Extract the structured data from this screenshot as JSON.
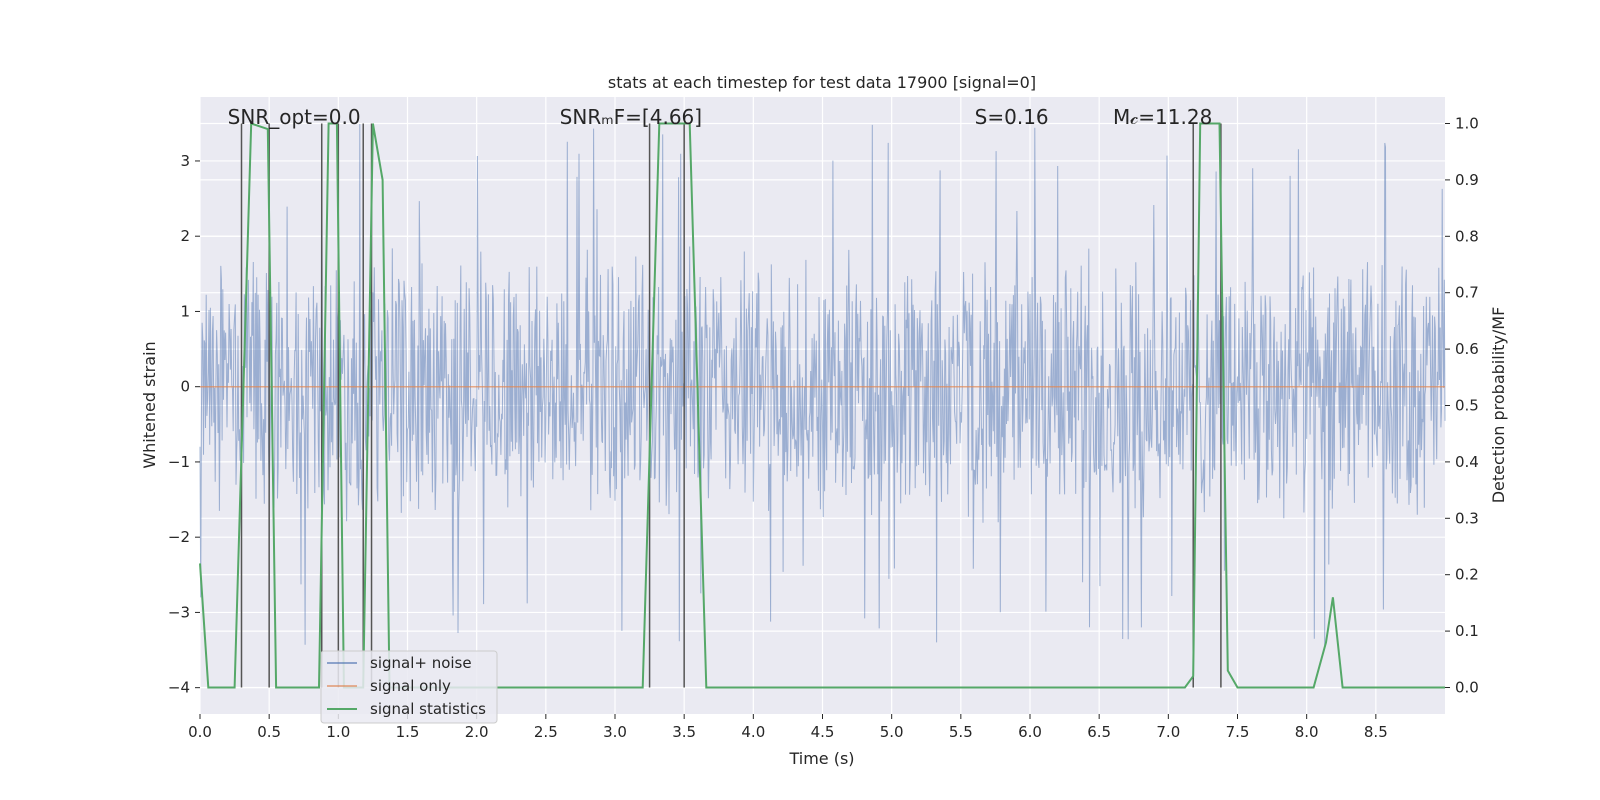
{
  "chart_data": {
    "type": "line",
    "title": "stats at each timestep for test data 17900 [signal=0]",
    "xlabel": "Time (s)",
    "ylabel": "Whitened strain",
    "y2label": "Detection probability/MF",
    "xlim": [
      0,
      9.0
    ],
    "ylim": [
      -4.35,
      3.85
    ],
    "y2lim": [
      -0.047,
      1.047
    ],
    "x_ticks": [
      0.0,
      0.5,
      1.0,
      1.5,
      2.0,
      2.5,
      3.0,
      3.5,
      4.0,
      4.5,
      5.0,
      5.5,
      6.0,
      6.5,
      7.0,
      7.5,
      8.0,
      8.5
    ],
    "x_tick_labels": [
      "0.0",
      "0.5",
      "1.0",
      "1.5",
      "2.0",
      "2.5",
      "3.0",
      "3.5",
      "4.0",
      "4.5",
      "5.0",
      "5.5",
      "6.0",
      "6.5",
      "7.0",
      "7.5",
      "8.0",
      "8.5"
    ],
    "y_ticks": [
      3,
      2,
      1,
      0,
      -1,
      -2,
      -3,
      -4
    ],
    "y_tick_labels": [
      "3",
      "2",
      "1",
      "0",
      "−1",
      "−2",
      "−3",
      "−4"
    ],
    "y2_ticks": [
      1.0,
      0.9,
      0.8,
      0.7,
      0.6,
      0.5,
      0.4,
      0.3,
      0.2,
      0.1,
      0.0
    ],
    "y2_tick_labels": [
      "1.0",
      "0.9",
      "0.8",
      "0.7",
      "0.6",
      "0.5",
      "0.4",
      "0.3",
      "0.2",
      "0.1",
      "0.0"
    ],
    "grid": true,
    "legend_position": "lower-left",
    "annotations": [
      {
        "text": "SNR_opt=0.0",
        "x": 0.2
      },
      {
        "text": "SNRₘF=[4.66]",
        "x": 2.6
      },
      {
        "text": "S=0.16",
        "x": 5.6
      },
      {
        "text": "M𝒸=11.28",
        "x": 6.6
      }
    ],
    "series": [
      {
        "name": "signal+ noise",
        "color": "#4c72b0",
        "kind": "noise",
        "amplitude_typical": 1.8,
        "amplitude_max": 3.5,
        "x_range": [
          0,
          9.0
        ]
      },
      {
        "name": "signal only",
        "color": "#dd8452",
        "kind": "flat",
        "y": 0
      },
      {
        "name": "signal statistics",
        "color": "#55a868",
        "axis": "y2",
        "x": [
          0.0,
          0.06,
          0.25,
          0.37,
          0.49,
          0.55,
          0.86,
          0.93,
          0.99,
          1.04,
          1.18,
          1.25,
          1.32,
          1.37,
          2.0,
          3.2,
          3.32,
          3.54,
          3.66,
          7.12,
          7.18,
          7.23,
          7.37,
          7.43,
          7.5,
          8.05,
          8.14,
          8.19,
          8.26,
          9.0
        ],
        "values": [
          0.22,
          0.0,
          0.0,
          1.0,
          0.99,
          0.0,
          0.0,
          1.0,
          1.0,
          0.0,
          0.0,
          1.0,
          0.9,
          0.0,
          0.0,
          0.0,
          1.0,
          1.0,
          0.0,
          0.0,
          0.02,
          1.0,
          1.0,
          0.03,
          0.0,
          0.0,
          0.08,
          0.16,
          0.0,
          0.0
        ]
      }
    ],
    "vertical_markers": {
      "color": "#555555",
      "x": [
        0.3,
        0.5,
        0.88,
        1.0,
        1.18,
        1.24,
        3.25,
        3.5,
        7.18,
        7.38
      ]
    }
  }
}
